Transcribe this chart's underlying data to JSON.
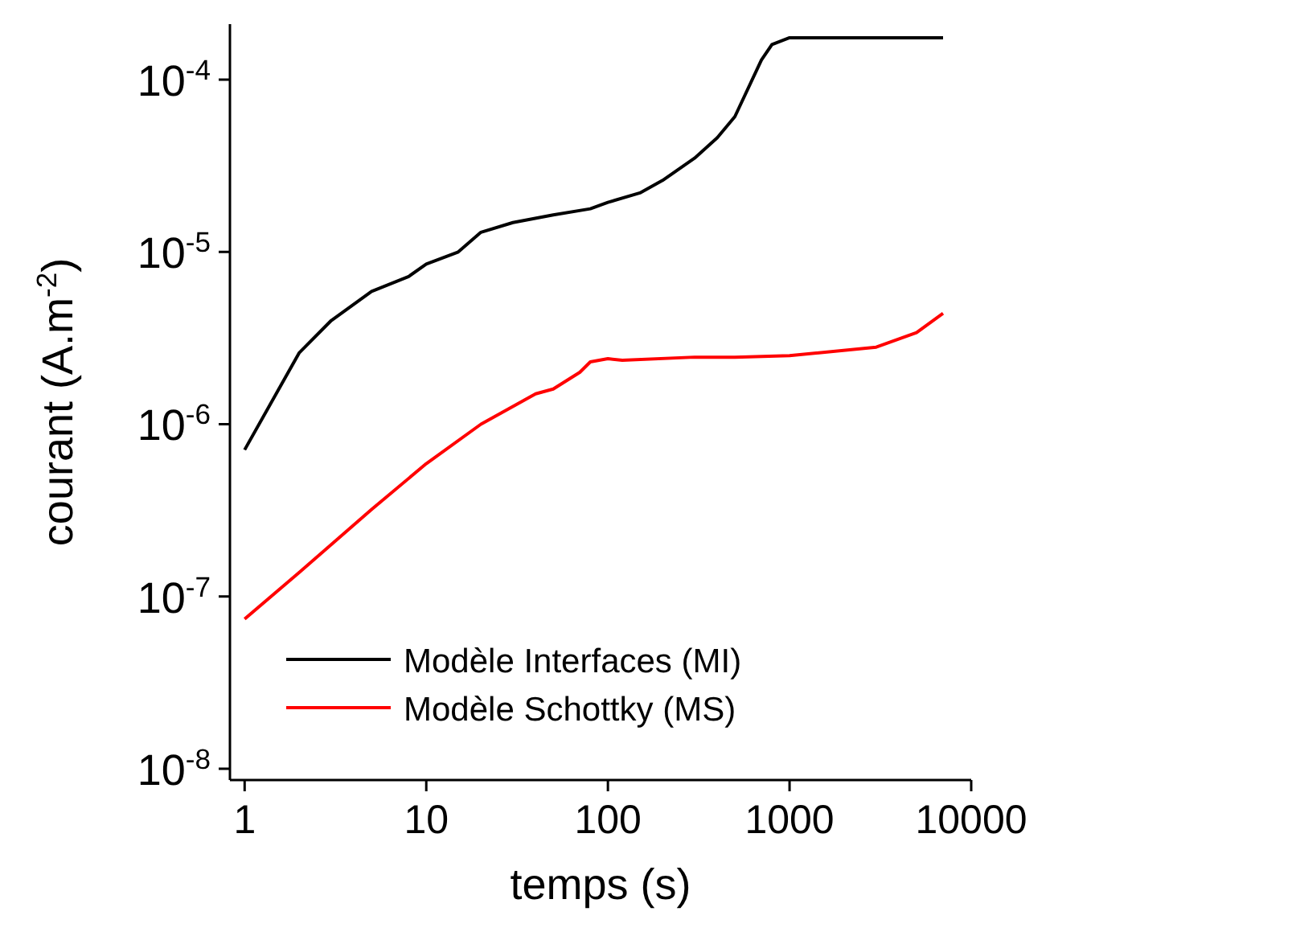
{
  "chart_data": {
    "type": "line",
    "xlabel": "temps (s)",
    "ylabel": "courant (A.m$^{-2}$)",
    "log": "xy",
    "xlim": [
      0.83,
      10000
    ],
    "ylim": [
      8.6e-09,
      0.00021
    ],
    "xticks": [
      1,
      10,
      100,
      1000,
      10000
    ],
    "yticks": [
      {
        "value": 1e-08,
        "label": "10$^{-8}$"
      },
      {
        "value": 1e-07,
        "label": "10$^{-7}$"
      },
      {
        "value": 1e-06,
        "label": "10$^{-6}$"
      },
      {
        "value": 1e-05,
        "label": "10$^{-5}$"
      },
      {
        "value": 0.0001,
        "label": "10$^{-4}$"
      }
    ],
    "legend": "bottom left",
    "grid": false,
    "line_style": "solid",
    "series": [
      {
        "name": "Modèle Interfaces (MI)",
        "color": "#000000",
        "x": [
          1,
          2,
          3,
          5,
          8,
          10,
          15,
          20,
          30,
          50,
          80,
          100,
          150,
          200,
          300,
          400,
          500,
          700,
          800,
          1000,
          2000,
          7000
        ],
        "values": [
          7.1e-07,
          2.6e-06,
          4e-06,
          5.9e-06,
          7.2e-06,
          8.5e-06,
          1e-05,
          1.3e-05,
          1.48e-05,
          1.64e-05,
          1.78e-05,
          1.94e-05,
          2.2e-05,
          2.6e-05,
          3.5e-05,
          4.6e-05,
          6.1e-05,
          0.00013,
          0.00016,
          0.000175,
          0.000175,
          0.000175
        ]
      },
      {
        "name": "Modèle Schottky (MS)",
        "color": "#ff0000",
        "x": [
          1,
          2,
          5,
          10,
          20,
          40,
          50,
          70,
          80,
          100,
          120,
          300,
          500,
          1000,
          3000,
          5000,
          7000
        ],
        "values": [
          7.4e-08,
          1.38e-07,
          3.2e-07,
          5.9e-07,
          1e-06,
          1.5e-06,
          1.6e-06,
          2e-06,
          2.3e-06,
          2.4e-06,
          2.35e-06,
          2.45e-06,
          2.45e-06,
          2.5e-06,
          2.8e-06,
          3.4e-06,
          4.4e-06
        ]
      }
    ]
  }
}
